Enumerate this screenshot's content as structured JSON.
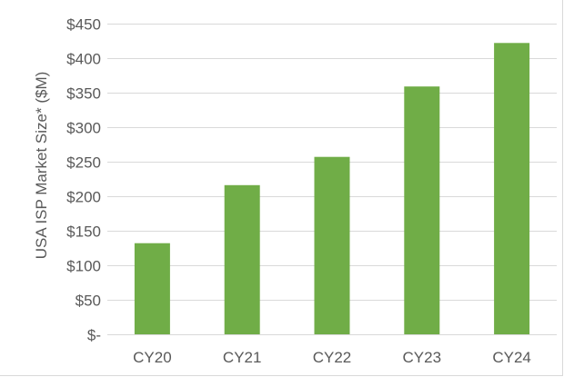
{
  "chart_data": {
    "type": "bar",
    "title": "",
    "xlabel": "",
    "ylabel": "USA ISP Market Size* ($M)",
    "categories": [
      "CY20",
      "CY21",
      "CY22",
      "CY23",
      "CY24"
    ],
    "values": [
      132,
      216,
      257,
      359,
      422
    ],
    "ylim": [
      0,
      450
    ],
    "yticks": [
      0,
      50,
      100,
      150,
      200,
      250,
      300,
      350,
      400,
      450
    ],
    "ytick_labels": [
      "$-",
      "$50",
      "$100",
      "$150",
      "$200",
      "$250",
      "$300",
      "$350",
      "$400",
      "$450"
    ],
    "grid": true,
    "legend": "none",
    "bar_color": "#70ad47",
    "grid_color": "#d9d9d9"
  }
}
